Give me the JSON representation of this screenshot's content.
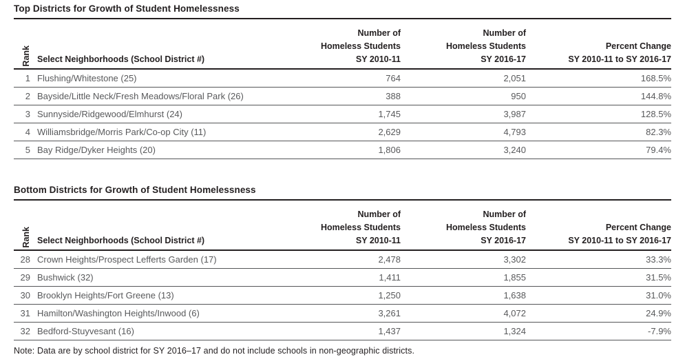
{
  "columns": {
    "rank": "Rank",
    "neighborhoods": "Select Neighborhoods (School District #)",
    "homeless_2010": "Number of\nHomeless Students\nSY 2010-11",
    "homeless_2016": "Number of\nHomeless Students\nSY 2016-17",
    "pct_change": "Percent Change\nSY 2010-11 to SY 2016-17"
  },
  "tables": [
    {
      "title": "Top Districts for Growth of Student Homelessness",
      "rows": [
        {
          "rank": "1",
          "neighborhood": "Flushing/Whitestone (25)",
          "sy2010": "764",
          "sy2016": "2,051",
          "pct": "168.5%"
        },
        {
          "rank": "2",
          "neighborhood": "Bayside/Little Neck/Fresh Meadows/Floral Park (26)",
          "sy2010": "388",
          "sy2016": "950",
          "pct": "144.8%"
        },
        {
          "rank": "3",
          "neighborhood": "Sunnyside/Ridgewood/Elmhurst (24)",
          "sy2010": "1,745",
          "sy2016": "3,987",
          "pct": "128.5%"
        },
        {
          "rank": "4",
          "neighborhood": "Williamsbridge/Morris Park/Co-op City (11)",
          "sy2010": "2,629",
          "sy2016": "4,793",
          "pct": "82.3%"
        },
        {
          "rank": "5",
          "neighborhood": "Bay Ridge/Dyker Heights (20)",
          "sy2010": "1,806",
          "sy2016": "3,240",
          "pct": "79.4%"
        }
      ]
    },
    {
      "title": "Bottom Districts for Growth of Student Homelessness",
      "rows": [
        {
          "rank": "28",
          "neighborhood": "Crown Heights/Prospect Lefferts Garden (17)",
          "sy2010": "2,478",
          "sy2016": "3,302",
          "pct": "33.3%"
        },
        {
          "rank": "29",
          "neighborhood": "Bushwick (32)",
          "sy2010": "1,411",
          "sy2016": "1,855",
          "pct": "31.5%"
        },
        {
          "rank": "30",
          "neighborhood": "Brooklyn Heights/Fort Greene (13)",
          "sy2010": "1,250",
          "sy2016": "1,638",
          "pct": "31.0%"
        },
        {
          "rank": "31",
          "neighborhood": "Hamilton/Washington Heights/Inwood (6)",
          "sy2010": "3,261",
          "sy2016": "4,072",
          "pct": "24.9%"
        },
        {
          "rank": "32",
          "neighborhood": "Bedford-Stuyvesant (16)",
          "sy2010": "1,437",
          "sy2016": "1,324",
          "pct": "-7.9%"
        }
      ]
    }
  ],
  "note": "Note: Data are by school district for SY 2016–17 and do not include schools in non-geographic districts.",
  "chart_data": [
    {
      "type": "table",
      "title": "Top Districts for Growth of Student Homelessness",
      "categories": [
        "Flushing/Whitestone (25)",
        "Bayside/Little Neck/Fresh Meadows/Floral Park (26)",
        "Sunnyside/Ridgewood/Elmhurst (24)",
        "Williamsbridge/Morris Park/Co-op City (11)",
        "Bay Ridge/Dyker Heights (20)"
      ],
      "series": [
        {
          "name": "Rank",
          "values": [
            1,
            2,
            3,
            4,
            5
          ]
        },
        {
          "name": "Number of Homeless Students SY 2010-11",
          "values": [
            764,
            388,
            1745,
            2629,
            1806
          ]
        },
        {
          "name": "Number of Homeless Students SY 2016-17",
          "values": [
            2051,
            950,
            3987,
            4793,
            3240
          ]
        },
        {
          "name": "Percent Change SY 2010-11 to SY 2016-17",
          "values": [
            168.5,
            144.8,
            128.5,
            82.3,
            79.4
          ]
        }
      ]
    },
    {
      "type": "table",
      "title": "Bottom Districts for Growth of Student Homelessness",
      "categories": [
        "Crown Heights/Prospect Lefferts Garden (17)",
        "Bushwick (32)",
        "Brooklyn Heights/Fort Greene (13)",
        "Hamilton/Washington Heights/Inwood (6)",
        "Bedford-Stuyvesant (16)"
      ],
      "series": [
        {
          "name": "Rank",
          "values": [
            28,
            29,
            30,
            31,
            32
          ]
        },
        {
          "name": "Number of Homeless Students SY 2010-11",
          "values": [
            2478,
            1411,
            1250,
            3261,
            1437
          ]
        },
        {
          "name": "Number of Homeless Students SY 2016-17",
          "values": [
            3302,
            1855,
            1638,
            4072,
            1324
          ]
        },
        {
          "name": "Percent Change SY 2010-11 to SY 2016-17",
          "values": [
            33.3,
            31.5,
            31.0,
            24.9,
            -7.9
          ]
        }
      ]
    }
  ],
  "colors": {
    "heading_text": "#231f20",
    "body_text": "#58595b",
    "rule_dark": "#231f20",
    "rule_row": "#545557"
  }
}
